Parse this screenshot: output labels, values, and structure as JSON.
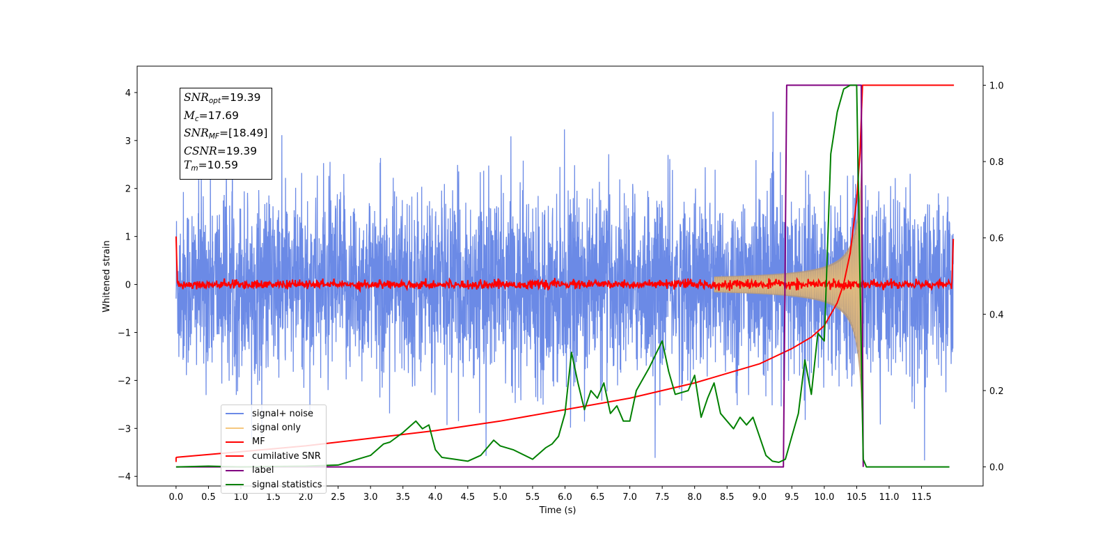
{
  "chart_data": {
    "type": "line",
    "xlabel": "Time (s)",
    "ylabel": "Whitened strain",
    "xlim": [
      -0.6,
      12.45
    ],
    "ylim_left": [
      -4.2,
      4.55
    ],
    "ylim_right": [
      -0.05,
      1.05
    ],
    "x_ticks": [
      "0.0",
      "0.5",
      "1.0",
      "1.5",
      "2.0",
      "2.5",
      "3.0",
      "3.5",
      "4.0",
      "4.5",
      "5.0",
      "5.5",
      "6.0",
      "6.5",
      "7.0",
      "7.5",
      "8.0",
      "8.5",
      "9.0",
      "9.5",
      "10.0",
      "10.5",
      "11.0",
      "11.5"
    ],
    "y_ticks_left": [
      "4",
      "3",
      "2",
      "1",
      "0",
      "−1",
      "−2",
      "−3",
      "−4"
    ],
    "y_ticks_right": [
      "1.0",
      "0.8",
      "0.6",
      "0.4",
      "0.2",
      "0.0"
    ],
    "annotation": {
      "snr_opt": "19.39",
      "mc": "17.69",
      "snr_mf": "[18.49]",
      "csnr": "19.39",
      "tm": "10.59"
    },
    "legend_placement": "lower-left",
    "series": [
      {
        "name": "signal+ noise",
        "color": "#6b8ae6",
        "axis": "left",
        "description": "whitened noise, std approx 1, peaks to +-3.5"
      },
      {
        "name": "signal only",
        "color": "#f5c77e",
        "axis": "left",
        "description": "chirp growing to amplitude ~2.5 at t=10.59 s"
      },
      {
        "name": "MF",
        "color": "#ff0000",
        "axis": "left",
        "description": "matched filter output near 0"
      },
      {
        "name": "cumilative SNR",
        "color": "#ff0000",
        "axis": "right",
        "x": [
          0.0,
          1.0,
          2.0,
          3.0,
          4.0,
          5.0,
          6.0,
          7.0,
          8.0,
          8.5,
          9.0,
          9.5,
          9.8,
          10.0,
          10.2,
          10.3,
          10.4,
          10.5,
          10.55,
          10.59,
          10.6,
          12.0
        ],
        "y": [
          0.025,
          0.04,
          0.055,
          0.075,
          0.095,
          0.12,
          0.15,
          0.18,
          0.22,
          0.245,
          0.27,
          0.31,
          0.34,
          0.37,
          0.43,
          0.48,
          0.56,
          0.7,
          0.82,
          1.0,
          1.0,
          1.0
        ]
      },
      {
        "name": "label",
        "color": "#800080",
        "axis": "right",
        "x": [
          0.0,
          9.37,
          9.42,
          10.57,
          10.6
        ],
        "y": [
          0.0,
          0.0,
          1.0,
          1.0,
          0.0
        ]
      },
      {
        "name": "signal statistics",
        "color": "#008000",
        "axis": "right",
        "x": [
          0.0,
          0.5,
          1.0,
          1.5,
          2.0,
          2.5,
          2.8,
          3.0,
          3.2,
          3.3,
          3.5,
          3.7,
          3.8,
          3.9,
          4.0,
          4.1,
          4.3,
          4.5,
          4.7,
          4.9,
          5.0,
          5.2,
          5.5,
          5.7,
          5.8,
          5.9,
          6.0,
          6.1,
          6.2,
          6.3,
          6.4,
          6.5,
          6.6,
          6.7,
          6.8,
          6.9,
          7.0,
          7.1,
          7.3,
          7.5,
          7.6,
          7.7,
          7.9,
          8.0,
          8.1,
          8.2,
          8.3,
          8.4,
          8.5,
          8.6,
          8.7,
          8.8,
          8.9,
          9.0,
          9.1,
          9.2,
          9.3,
          9.4,
          9.5,
          9.6,
          9.7,
          9.8,
          9.9,
          10.0,
          10.1,
          10.2,
          10.3,
          10.4,
          10.5,
          10.55,
          10.6,
          10.65,
          11.0,
          11.5,
          11.93
        ],
        "y": [
          0.0,
          0.002,
          0.0,
          0.001,
          0.002,
          0.005,
          0.02,
          0.03,
          0.06,
          0.065,
          0.09,
          0.12,
          0.1,
          0.11,
          0.045,
          0.025,
          0.02,
          0.015,
          0.03,
          0.07,
          0.055,
          0.045,
          0.02,
          0.05,
          0.06,
          0.08,
          0.14,
          0.3,
          0.22,
          0.15,
          0.2,
          0.18,
          0.22,
          0.14,
          0.16,
          0.12,
          0.12,
          0.2,
          0.26,
          0.33,
          0.25,
          0.19,
          0.2,
          0.24,
          0.13,
          0.18,
          0.22,
          0.14,
          0.12,
          0.1,
          0.13,
          0.11,
          0.13,
          0.08,
          0.03,
          0.015,
          0.012,
          0.02,
          0.08,
          0.14,
          0.28,
          0.19,
          0.35,
          0.33,
          0.82,
          0.93,
          0.99,
          1.0,
          1.0,
          0.5,
          0.02,
          0.0,
          0.0,
          0.0,
          0.0
        ]
      }
    ]
  },
  "colors": {
    "noise": "#6b8ae6",
    "signal_only": "#f5c77e",
    "signal_overlap": "#b89a7a",
    "mf": "#ff0000",
    "csnr": "#ff0000",
    "label": "#800080",
    "statistics": "#008000"
  }
}
